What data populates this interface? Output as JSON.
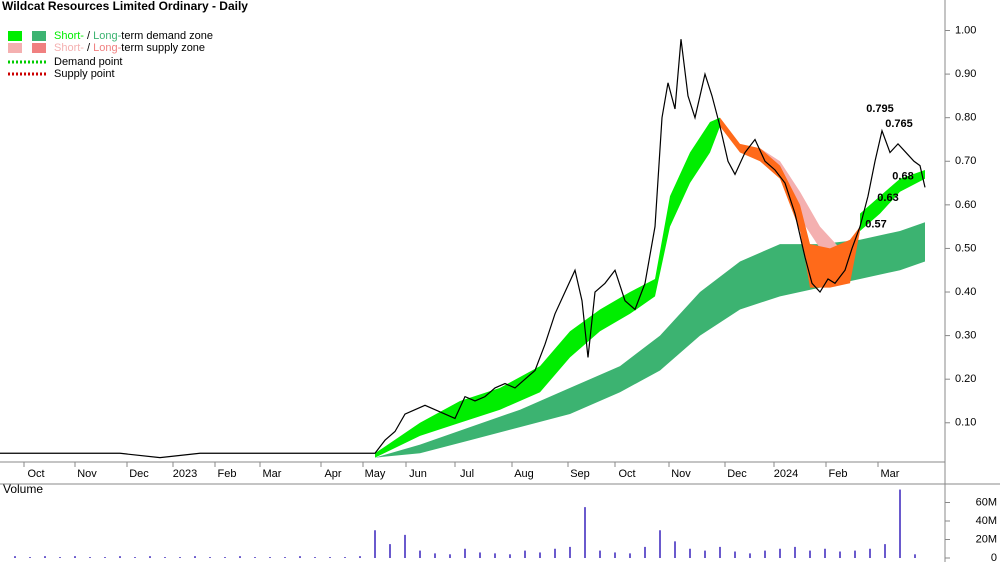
{
  "chart_data": [
    {
      "type": "stock",
      "title": "Wildcat Resources Limited Ordinary - Daily",
      "legend": {
        "demand_zone": {
          "short": "Short-",
          "sep": " / ",
          "long": "Long-",
          "rest": "term demand zone",
          "short_color": "#00ee00",
          "long_color": "#3cb371"
        },
        "supply_zone": {
          "short": "Short-",
          "sep": " / ",
          "long": "Long-",
          "rest": "term supply zone",
          "short_color": "#f4b0b0",
          "long_color": "#f08080"
        },
        "demand_point": {
          "label": "Demand point",
          "color": "#00cc00"
        },
        "supply_point": {
          "label": "Supply point",
          "color": "#cc0000"
        }
      },
      "xlim": [
        0,
        945
      ],
      "xticks": [
        {
          "value": 36,
          "label": "Oct"
        },
        {
          "value": 87,
          "label": "Nov"
        },
        {
          "value": 139,
          "label": "Dec"
        },
        {
          "value": 185,
          "label": "2023"
        },
        {
          "value": 227,
          "label": "Feb"
        },
        {
          "value": 272,
          "label": "Mar"
        },
        {
          "value": 333,
          "label": "Apr"
        },
        {
          "value": 375,
          "label": "May"
        },
        {
          "value": 418,
          "label": "Jun"
        },
        {
          "value": 467,
          "label": "Jul"
        },
        {
          "value": 524,
          "label": "Aug"
        },
        {
          "value": 580,
          "label": "Sep"
        },
        {
          "value": 627,
          "label": "Oct"
        },
        {
          "value": 681,
          "label": "Nov"
        },
        {
          "value": 737,
          "label": "Dec"
        },
        {
          "value": 786,
          "label": "2024"
        },
        {
          "value": 838,
          "label": "Feb"
        },
        {
          "value": 890,
          "label": "Mar"
        }
      ],
      "ylim": [
        0.01,
        1.07
      ],
      "yticks": [
        {
          "value": 0.1,
          "label": "0.10"
        },
        {
          "value": 0.2,
          "label": "0.20"
        },
        {
          "value": 0.3,
          "label": "0.30"
        },
        {
          "value": 0.4,
          "label": "0.40"
        },
        {
          "value": 0.5,
          "label": "0.50"
        },
        {
          "value": 0.6,
          "label": "0.60"
        },
        {
          "value": 0.7,
          "label": "0.70"
        },
        {
          "value": 0.8,
          "label": "0.80"
        },
        {
          "value": 0.9,
          "label": "0.90"
        },
        {
          "value": 1,
          "label": "1.00"
        }
      ],
      "zones": [
        {
          "name": "long-term demand",
          "color": "#3cb371",
          "x": [
            375,
            420,
            470,
            520,
            570,
            620,
            660,
            700,
            740,
            780,
            820,
            860,
            900,
            925
          ],
          "upper": [
            0.02,
            0.05,
            0.09,
            0.13,
            0.18,
            0.23,
            0.3,
            0.4,
            0.47,
            0.51,
            0.51,
            0.52,
            0.54,
            0.56
          ],
          "lower": [
            0.02,
            0.03,
            0.06,
            0.09,
            0.12,
            0.17,
            0.22,
            0.3,
            0.36,
            0.39,
            0.41,
            0.43,
            0.45,
            0.47
          ]
        },
        {
          "name": "long-term supply",
          "color": "#f4b0b0",
          "x": [
            760,
            780,
            800,
            820,
            840,
            850
          ],
          "upper": [
            0.73,
            0.7,
            0.63,
            0.55,
            0.5,
            0.5
          ],
          "lower": [
            0.72,
            0.67,
            0.57,
            0.5,
            0.47,
            0.48
          ]
        },
        {
          "name": "short-term supply",
          "color": "#ff6a1a",
          "x": [
            720,
            740,
            760,
            780,
            800,
            810,
            830,
            850,
            860
          ],
          "upper": [
            0.8,
            0.74,
            0.73,
            0.69,
            0.6,
            0.51,
            0.5,
            0.52,
            0.55
          ],
          "lower": [
            0.78,
            0.72,
            0.7,
            0.66,
            0.54,
            0.41,
            0.41,
            0.42,
            0.54
          ]
        },
        {
          "name": "short-term demand",
          "color": "#00ee00",
          "x": [
            375,
            420,
            460,
            500,
            540,
            570,
            600,
            630,
            655,
            670,
            690,
            710,
            720,
            740,
            860,
            880,
            900,
            925
          ],
          "upper": [
            0.03,
            0.1,
            0.15,
            0.18,
            0.23,
            0.31,
            0.36,
            0.4,
            0.43,
            0.62,
            0.72,
            0.79,
            0.8,
            null,
            0.58,
            0.62,
            0.66,
            0.68
          ],
          "lower": [
            0.02,
            0.07,
            0.1,
            0.13,
            0.17,
            0.25,
            0.31,
            0.35,
            0.39,
            0.55,
            0.65,
            0.72,
            0.78,
            null,
            0.54,
            0.58,
            0.63,
            0.66
          ]
        }
      ],
      "price": {
        "color": "#000000",
        "x": [
          0,
          40,
          80,
          120,
          160,
          200,
          240,
          280,
          320,
          360,
          375,
          385,
          395,
          405,
          415,
          425,
          435,
          445,
          455,
          465,
          475,
          485,
          495,
          505,
          515,
          525,
          535,
          545,
          555,
          565,
          575,
          582,
          588,
          595,
          605,
          615,
          625,
          635,
          645,
          655,
          662,
          668,
          675,
          681,
          688,
          695,
          705,
          712,
          720,
          728,
          735,
          745,
          755,
          765,
          775,
          785,
          795,
          805,
          812,
          820,
          828,
          835,
          845,
          852,
          860,
          868,
          875,
          882,
          890,
          898,
          906,
          914,
          920,
          925
        ],
        "values": [
          0.03,
          0.03,
          0.03,
          0.03,
          0.02,
          0.03,
          0.03,
          0.03,
          0.03,
          0.03,
          0.03,
          0.06,
          0.08,
          0.12,
          0.13,
          0.14,
          0.13,
          0.12,
          0.11,
          0.16,
          0.15,
          0.16,
          0.18,
          0.19,
          0.18,
          0.2,
          0.22,
          0.28,
          0.35,
          0.4,
          0.45,
          0.38,
          0.25,
          0.4,
          0.42,
          0.45,
          0.38,
          0.36,
          0.42,
          0.55,
          0.8,
          0.88,
          0.82,
          0.98,
          0.85,
          0.8,
          0.9,
          0.85,
          0.78,
          0.7,
          0.67,
          0.72,
          0.75,
          0.7,
          0.68,
          0.65,
          0.58,
          0.48,
          0.42,
          0.4,
          0.43,
          0.42,
          0.45,
          0.5,
          0.55,
          0.62,
          0.7,
          0.77,
          0.72,
          0.74,
          0.72,
          0.7,
          0.69,
          0.64
        ]
      },
      "annotations": [
        {
          "text": "0.795",
          "x": 880,
          "y": 0.82
        },
        {
          "text": "0.765",
          "x": 899,
          "y": 0.785
        },
        {
          "text": "0.68",
          "x": 903,
          "y": 0.665
        },
        {
          "text": "0.63",
          "x": 888,
          "y": 0.615
        },
        {
          "text": "0.57",
          "x": 876,
          "y": 0.555
        }
      ]
    },
    {
      "type": "bar",
      "title": "Volume",
      "title_color": "#660099",
      "color": "#6a5acd",
      "x": [
        15,
        30,
        45,
        60,
        75,
        90,
        105,
        120,
        135,
        150,
        165,
        180,
        195,
        210,
        225,
        240,
        255,
        270,
        285,
        300,
        315,
        330,
        345,
        360,
        375,
        390,
        405,
        420,
        435,
        450,
        465,
        480,
        495,
        510,
        525,
        540,
        555,
        570,
        585,
        600,
        615,
        630,
        645,
        660,
        675,
        690,
        705,
        720,
        735,
        750,
        765,
        780,
        795,
        810,
        825,
        840,
        855,
        870,
        885,
        900,
        915
      ],
      "values": [
        2000000,
        1000000,
        2000000,
        1000000,
        2000000,
        1000000,
        1000000,
        2000000,
        1000000,
        2000000,
        1000000,
        1000000,
        2000000,
        1000000,
        1000000,
        2000000,
        1000000,
        1000000,
        1000000,
        2000000,
        1000000,
        1000000,
        1000000,
        2000000,
        30000000,
        15000000,
        25000000,
        8000000,
        5000000,
        4000000,
        10000000,
        6000000,
        5000000,
        4000000,
        8000000,
        6000000,
        10000000,
        12000000,
        55000000,
        8000000,
        6000000,
        5000000,
        12000000,
        30000000,
        18000000,
        10000000,
        8000000,
        12000000,
        7000000,
        5000000,
        8000000,
        10000000,
        12000000,
        8000000,
        10000000,
        7000000,
        8000000,
        10000000,
        15000000,
        74000000,
        4000000
      ],
      "ylim": [
        0,
        80000000
      ],
      "yticks": [
        0,
        {
          "value": 20000000,
          "label": "20M"
        },
        {
          "value": 40000000,
          "label": "40M"
        },
        {
          "value": 60000000,
          "label": "60M"
        }
      ]
    }
  ]
}
